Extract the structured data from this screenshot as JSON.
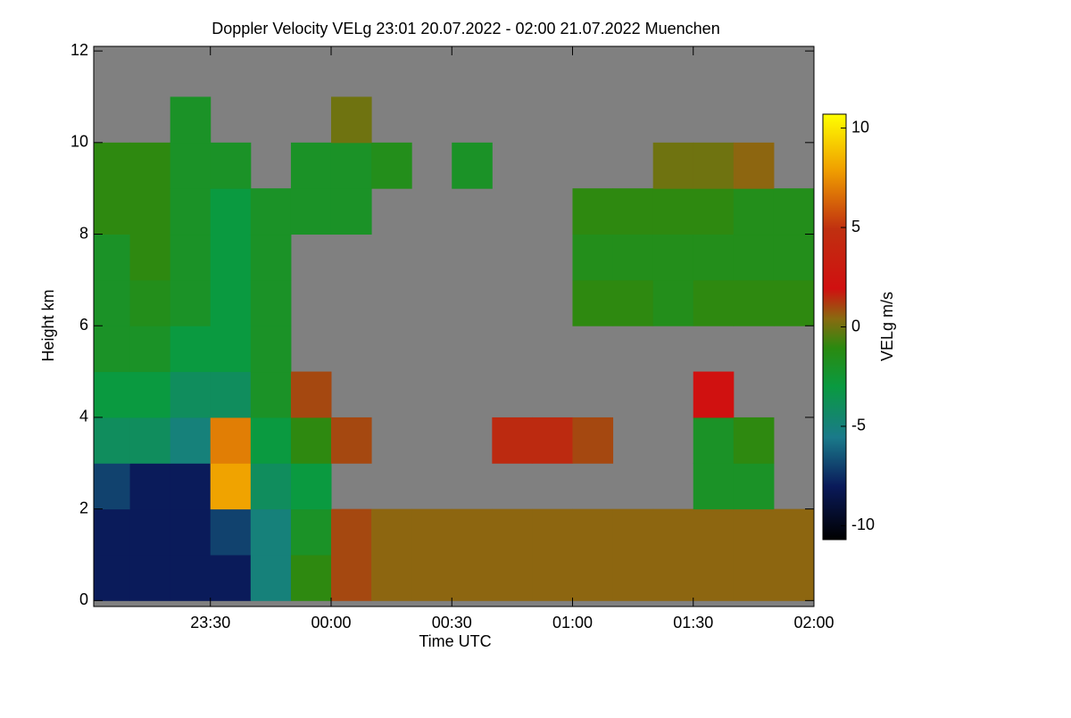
{
  "chart_data": {
    "type": "heatmap",
    "title": "Doppler Velocity VELg   23:01 20.07.2022 - 02:00 21.07.2022 Muenchen",
    "x_label": "Time UTC",
    "y_label": "Height km",
    "colorbar_label": "VELg m/s",
    "xlim": [
      23.0167,
      26.0
    ],
    "xticks": [
      {
        "value": 23.5,
        "label": "23:30"
      },
      {
        "value": 24.0,
        "label": "00:00"
      },
      {
        "value": 24.5,
        "label": "00:30"
      },
      {
        "value": 25.0,
        "label": "01:00"
      },
      {
        "value": 25.5,
        "label": "01:30"
      },
      {
        "value": 26.0,
        "label": "02:00"
      }
    ],
    "ylim": [
      -0.13,
      12.1
    ],
    "yticks": [
      0,
      2,
      4,
      6,
      8,
      10,
      12
    ],
    "zlim": [
      -10.7,
      10.7
    ],
    "zticks": [
      -10,
      -5,
      0,
      5,
      10
    ],
    "x": [
      23.0833,
      23.25,
      23.4167,
      23.5833,
      23.75,
      23.9167,
      24.0833,
      24.25,
      24.4167,
      24.5833,
      24.75,
      24.9167,
      25.0833,
      25.25,
      25.4167,
      25.5833,
      25.75,
      25.9167
    ],
    "y": [
      0.5,
      1.5,
      2.5,
      3.5,
      4.5,
      5.5,
      6.5,
      7.5,
      8.5,
      9.5,
      10.5,
      11.5
    ],
    "z": [
      [
        -8,
        -8,
        -8,
        -8,
        -5,
        -1,
        1,
        0.5,
        0.5,
        0.5,
        0.5,
        0.5,
        0.5,
        0.5,
        0.5,
        0.5,
        0.5,
        0.5
      ],
      [
        -8,
        -8,
        -8,
        -7,
        -5,
        -2,
        1,
        0.5,
        0.5,
        0.5,
        0.5,
        0.5,
        0.5,
        0.5,
        0.5,
        0.5,
        0.5,
        0.5
      ],
      [
        -7,
        -8,
        -8,
        8,
        -4,
        -3,
        null,
        null,
        null,
        null,
        null,
        null,
        null,
        null,
        null,
        -2,
        -2,
        null
      ],
      [
        -4,
        -4,
        -5,
        7,
        -3,
        -1,
        1,
        null,
        null,
        null,
        1.5,
        1.5,
        1,
        null,
        null,
        -2,
        -1,
        null
      ],
      [
        -3,
        -3,
        -4,
        -4,
        -2,
        1,
        null,
        null,
        null,
        null,
        null,
        null,
        null,
        null,
        null,
        2,
        null,
        null
      ],
      [
        -2,
        -2,
        -3,
        -3,
        -2,
        null,
        null,
        null,
        null,
        null,
        null,
        null,
        null,
        null,
        null,
        null,
        null,
        null
      ],
      [
        -2,
        -1.5,
        -2,
        -3,
        -2,
        null,
        null,
        null,
        null,
        null,
        null,
        null,
        -1,
        -1,
        -1.5,
        -1,
        -1,
        -1
      ],
      [
        -2,
        -1,
        -2,
        -3,
        -2,
        null,
        null,
        null,
        null,
        null,
        null,
        null,
        -1.5,
        -1.5,
        -1.5,
        -1.5,
        -1.5,
        -1.5
      ],
      [
        -1,
        -1,
        -2,
        -3,
        -2,
        -2,
        -2,
        null,
        null,
        null,
        null,
        null,
        -1,
        -1,
        -1,
        -1,
        -1.5,
        -1.5
      ],
      [
        -1,
        -1,
        -2,
        -2,
        null,
        -2,
        -2,
        -1.5,
        null,
        -2,
        null,
        null,
        null,
        null,
        0,
        0,
        0.5,
        null
      ],
      [
        null,
        null,
        -2,
        null,
        null,
        null,
        0,
        null,
        null,
        null,
        null,
        null,
        null,
        null,
        null,
        null,
        null,
        null
      ],
      [
        null,
        null,
        null,
        null,
        null,
        null,
        null,
        null,
        null,
        null,
        null,
        null,
        null,
        null,
        null,
        null,
        null,
        null
      ]
    ]
  }
}
